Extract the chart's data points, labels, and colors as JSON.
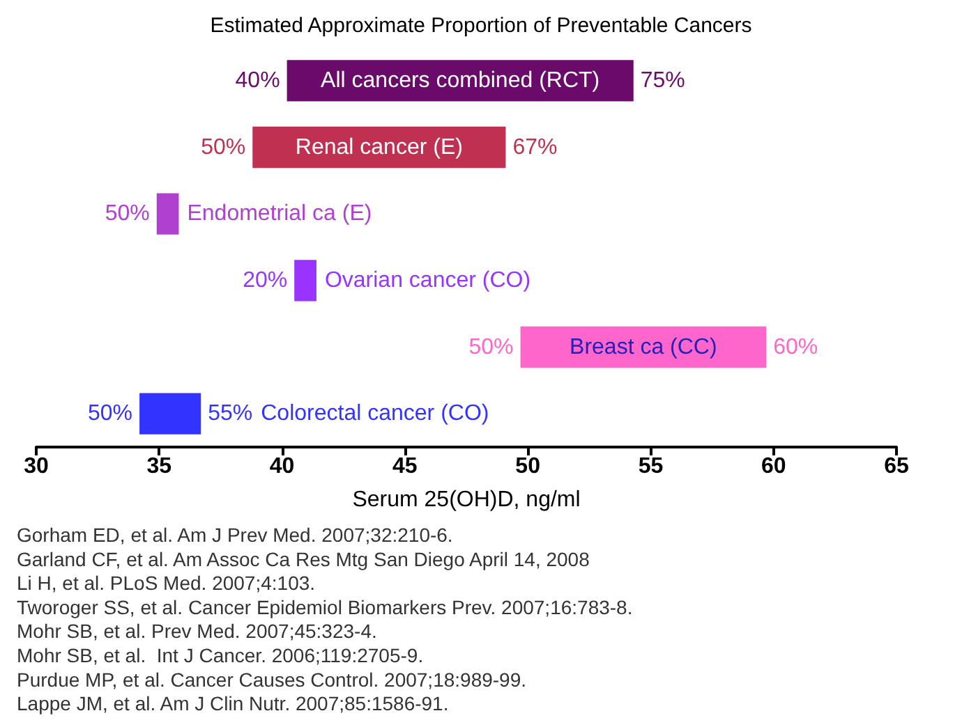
{
  "chart_data": {
    "type": "bar",
    "orientation": "horizontal",
    "title": "Estimated Approximate Proportion of Preventable Cancers",
    "xlabel": "Serum 25(OH)D, ng/ml",
    "categories": [
      "All cancers combined (RCT)",
      "Renal cancer (E)",
      "Endometrial ca (E)",
      "Ovarian cancer (CO)",
      "Breast ca (CC)",
      "Colorectal cancer (CO)"
    ],
    "base": [
      40.2,
      38.8,
      34.9,
      40.5,
      49.7,
      34.2
    ],
    "values": [
      14.1,
      10.3,
      0.9,
      0.9,
      10.0,
      2.5
    ],
    "colors": [
      "#6a0a6a",
      "#c03050",
      "#b040d0",
      "#9933ff",
      "#ff66cc",
      "#3333ff"
    ],
    "xlim": [
      30,
      65
    ],
    "xticks": [
      30,
      35,
      40,
      45,
      50,
      55,
      60,
      65
    ],
    "grid": false,
    "annotations": [
      {
        "text": "40%",
        "x": 40.2,
        "y": "All cancers combined (RCT)"
      },
      {
        "text": "75%",
        "x": 54.3,
        "y": "All cancers combined (RCT)"
      },
      {
        "text": "50%",
        "x": 38.8,
        "y": "Renal cancer (E)"
      },
      {
        "text": "67%",
        "x": 49.1,
        "y": "Renal cancer (E)"
      },
      {
        "text": "50%",
        "x": 34.9,
        "y": "Endometrial ca (E)"
      },
      {
        "text": "20%",
        "x": 40.5,
        "y": "Ovarian cancer (CO)"
      },
      {
        "text": "50%",
        "x": 49.7,
        "y": "Breast ca (CC)"
      },
      {
        "text": "60%",
        "x": 59.7,
        "y": "Breast ca (CC)"
      },
      {
        "text": "50%",
        "x": 34.2,
        "y": "Colorectal cancer (CO)"
      },
      {
        "text": "55%",
        "x": 36.7,
        "y": "Colorectal cancer (CO)"
      },
      "Gorham ED, et al. Am J Prev Med. 2007;32:210-6.",
      "Garland CF, et al. Am Assoc Ca Res Mtg San Diego April 14, 2008",
      "Li H, et al. PLoS Med. 2007;4:103.",
      "Tworoger SS, et al. Cancer Epidemiol Biomarkers Prev. 2007;16:783-8.",
      "Mohr SB, et al. Prev Med. 2007;45:323-4.",
      "Mohr SB, et al.  Int J Cancer. 2006;119:2705-9.",
      "Purdue MP, et al. Cancer Causes Control. 2007;18:989-99.",
      "Lappe JM, et al. Am J Clin Nutr. 2007;85:1586-91."
    ]
  }
}
